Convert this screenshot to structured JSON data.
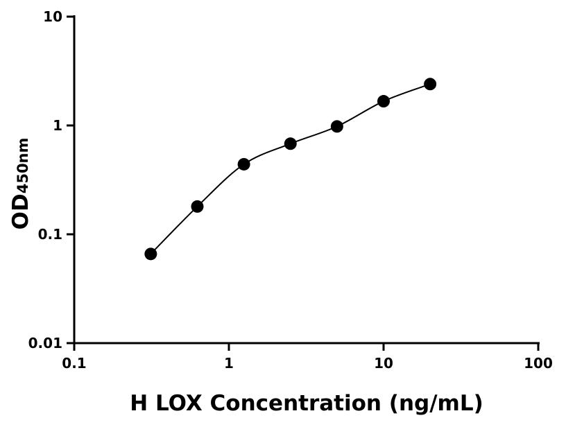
{
  "chart_data": {
    "type": "scatter",
    "title": "",
    "xlabel": "H LOX Concentration (ng/mL)",
    "ylabel": "OD",
    "ylabel_subscript": "450nm",
    "x_scale": "log",
    "y_scale": "log",
    "xlim": [
      0.1,
      100
    ],
    "ylim": [
      0.01,
      10
    ],
    "x_ticks": [
      "0.1",
      "1",
      "10",
      "100"
    ],
    "y_ticks": [
      "0.01",
      "0.1",
      "1",
      "10"
    ],
    "grid": false,
    "fit_line": true,
    "series": [
      {
        "x": [
          0.3125,
          0.625,
          1.25,
          2.5,
          5,
          10,
          20
        ],
        "y": [
          0.066,
          0.18,
          0.44,
          0.68,
          0.98,
          1.67,
          2.4
        ]
      }
    ],
    "colors": {
      "marker": "#000000",
      "line": "#000000"
    }
  }
}
